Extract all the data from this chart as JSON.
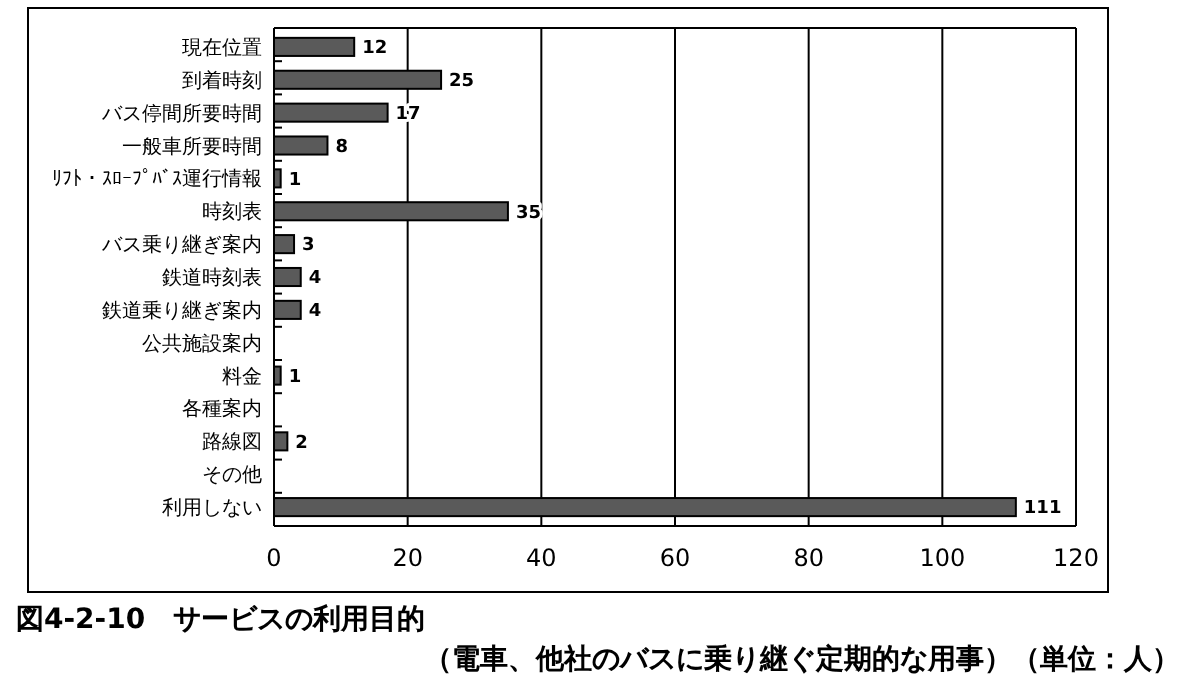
{
  "chart_data": {
    "type": "bar",
    "orientation": "horizontal",
    "title": "図4-2-10　サービスの利用目的",
    "subtitle": "（電車、他社のバスに乗り継ぐ定期的な用事）（単位：人）",
    "categories": [
      "現在位置",
      "到着時刻",
      "バス停間所要時間",
      "一般車所要時間",
      "ﾘﾌﾄ・ｽﾛｰﾌﾟﾊﾞｽ運行情報",
      "時刻表",
      "バス乗り継ぎ案内",
      "鉄道時刻表",
      "鉄道乗り継ぎ案内",
      "公共施設案内",
      "料金",
      "各種案内",
      "路線図",
      "その他",
      "利用しない"
    ],
    "values": [
      12,
      25,
      17,
      8,
      1,
      35,
      3,
      4,
      4,
      0,
      1,
      0,
      2,
      0,
      111
    ],
    "value_labels": [
      "12",
      "25",
      "17",
      "8",
      "1",
      "35",
      "3",
      "4",
      "4",
      null,
      "1",
      null,
      "2",
      null,
      "111"
    ],
    "color": "#5a5a5a",
    "xlim": [
      0,
      120
    ],
    "xticks": [
      0,
      20,
      40,
      60,
      80,
      100,
      120
    ],
    "grid": "x"
  }
}
